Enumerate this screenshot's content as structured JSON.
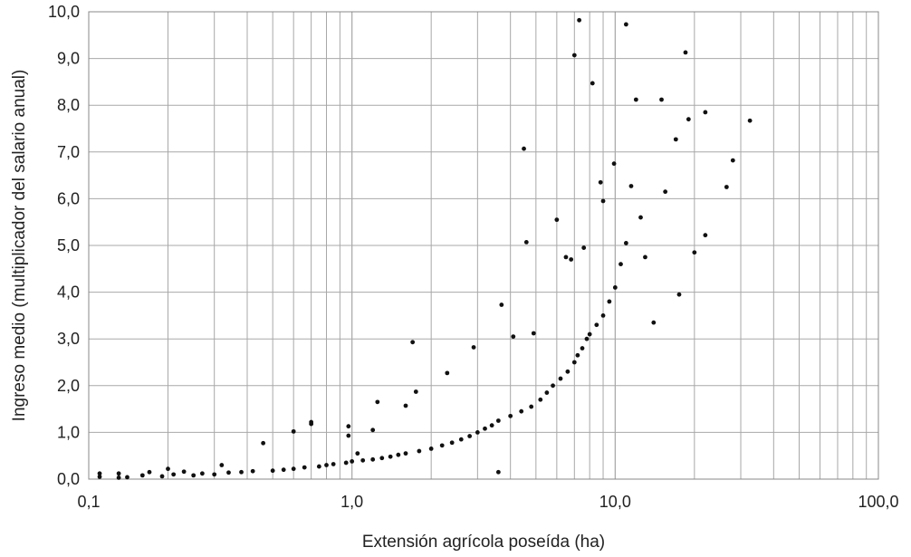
{
  "chart_data": {
    "type": "scatter",
    "title": "",
    "xlabel": "Extensión agrícola poseída (ha)",
    "ylabel": "Ingreso medio (multiplicador del salario anual)",
    "x_scale": "log",
    "xlim": [
      0.1,
      100
    ],
    "ylim": [
      0,
      10
    ],
    "x_ticks": [
      "0,1",
      "1,0",
      "10,0",
      "100,0"
    ],
    "y_ticks": [
      "0,0",
      "1,0",
      "2,0",
      "3,0",
      "4,0",
      "5,0",
      "6,0",
      "7,0",
      "8,0",
      "9,0",
      "10,0"
    ],
    "grid": true,
    "legend": "none",
    "marker_color": "#111111",
    "points": [
      [
        0.11,
        0.12
      ],
      [
        0.11,
        0.05
      ],
      [
        0.13,
        0.03
      ],
      [
        0.13,
        0.12
      ],
      [
        0.14,
        0.04
      ],
      [
        0.16,
        0.08
      ],
      [
        0.17,
        0.15
      ],
      [
        0.19,
        0.06
      ],
      [
        0.2,
        0.22
      ],
      [
        0.21,
        0.1
      ],
      [
        0.23,
        0.16
      ],
      [
        0.25,
        0.08
      ],
      [
        0.27,
        0.12
      ],
      [
        0.3,
        0.1
      ],
      [
        0.32,
        0.3
      ],
      [
        0.34,
        0.14
      ],
      [
        0.38,
        0.15
      ],
      [
        0.42,
        0.17
      ],
      [
        0.46,
        0.77
      ],
      [
        0.5,
        0.18
      ],
      [
        0.55,
        0.2
      ],
      [
        0.6,
        0.22
      ],
      [
        0.6,
        1.02
      ],
      [
        0.66,
        0.25
      ],
      [
        0.7,
        1.18
      ],
      [
        0.7,
        1.22
      ],
      [
        0.75,
        0.27
      ],
      [
        0.8,
        0.3
      ],
      [
        0.85,
        0.32
      ],
      [
        0.95,
        0.35
      ],
      [
        0.97,
        1.13
      ],
      [
        0.97,
        0.93
      ],
      [
        1.0,
        0.38
      ],
      [
        1.05,
        0.55
      ],
      [
        1.1,
        0.4
      ],
      [
        1.2,
        0.42
      ],
      [
        1.2,
        1.05
      ],
      [
        1.25,
        1.65
      ],
      [
        1.3,
        0.45
      ],
      [
        1.4,
        0.48
      ],
      [
        1.5,
        0.52
      ],
      [
        1.6,
        0.55
      ],
      [
        1.6,
        1.57
      ],
      [
        1.7,
        2.93
      ],
      [
        1.75,
        1.87
      ],
      [
        1.8,
        0.6
      ],
      [
        2.0,
        0.65
      ],
      [
        2.2,
        0.72
      ],
      [
        2.3,
        2.27
      ],
      [
        2.4,
        0.78
      ],
      [
        2.6,
        0.85
      ],
      [
        2.8,
        0.92
      ],
      [
        2.9,
        2.82
      ],
      [
        3.0,
        1.0
      ],
      [
        3.2,
        1.08
      ],
      [
        3.4,
        1.15
      ],
      [
        3.6,
        1.25
      ],
      [
        3.6,
        0.15
      ],
      [
        3.7,
        3.73
      ],
      [
        4.0,
        1.35
      ],
      [
        4.1,
        3.05
      ],
      [
        4.4,
        1.45
      ],
      [
        4.5,
        7.07
      ],
      [
        4.6,
        5.07
      ],
      [
        4.8,
        1.55
      ],
      [
        4.9,
        3.12
      ],
      [
        5.2,
        1.7
      ],
      [
        5.5,
        1.85
      ],
      [
        5.8,
        2.0
      ],
      [
        6.0,
        5.55
      ],
      [
        6.2,
        2.15
      ],
      [
        6.5,
        4.75
      ],
      [
        6.6,
        2.3
      ],
      [
        6.8,
        4.7
      ],
      [
        7.0,
        2.5
      ],
      [
        7.0,
        9.07
      ],
      [
        7.2,
        2.65
      ],
      [
        7.3,
        9.82
      ],
      [
        7.5,
        2.8
      ],
      [
        7.6,
        4.95
      ],
      [
        7.8,
        3.0
      ],
      [
        8.0,
        3.1
      ],
      [
        8.2,
        8.47
      ],
      [
        8.5,
        3.3
      ],
      [
        8.8,
        6.35
      ],
      [
        9.0,
        3.5
      ],
      [
        9.0,
        5.95
      ],
      [
        9.5,
        3.8
      ],
      [
        9.9,
        6.75
      ],
      [
        10.0,
        4.1
      ],
      [
        10.5,
        4.6
      ],
      [
        11.0,
        9.73
      ],
      [
        11.0,
        5.05
      ],
      [
        11.5,
        6.27
      ],
      [
        12.0,
        8.12
      ],
      [
        12.5,
        5.6
      ],
      [
        13.0,
        4.75
      ],
      [
        14.0,
        3.35
      ],
      [
        15.0,
        8.12
      ],
      [
        15.5,
        6.15
      ],
      [
        17.0,
        7.27
      ],
      [
        17.5,
        3.95
      ],
      [
        18.5,
        9.13
      ],
      [
        19.0,
        7.7
      ],
      [
        20.0,
        4.85
      ],
      [
        22.0,
        5.22
      ],
      [
        22.0,
        7.85
      ],
      [
        26.5,
        6.25
      ],
      [
        28.0,
        6.82
      ],
      [
        32.5,
        7.67
      ]
    ]
  }
}
